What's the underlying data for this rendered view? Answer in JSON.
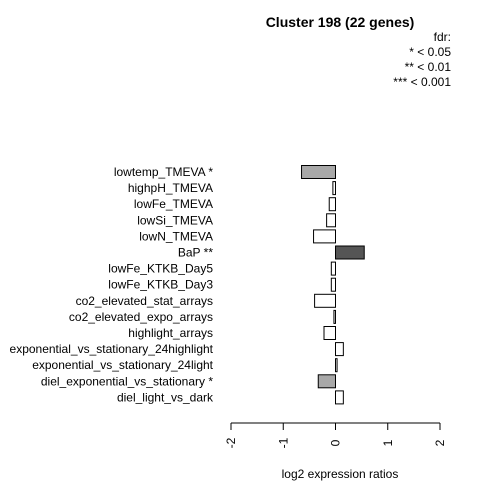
{
  "chart_data": {
    "type": "bar",
    "orientation": "horizontal",
    "title": "Cluster 198 (22 genes)",
    "xlabel": "log2 expression ratios",
    "ylabel": "",
    "xlim": [
      -2,
      2
    ],
    "xticks": [
      "-2",
      "-1",
      "0",
      "1",
      "2"
    ],
    "legend": {
      "heading": "fdr:",
      "entries": [
        "* < 0.05",
        "** < 0.01",
        "*** < 0.001"
      ],
      "placement": "top-right"
    },
    "categories": [
      "lowtemp_TMEVA *",
      "highpH_TMEVA",
      "lowFe_TMEVA",
      "lowSi_TMEVA",
      "lowN_TMEVA",
      "BaP **",
      "lowFe_KTKB_Day5",
      "lowFe_KTKB_Day3",
      "co2_elevated_stat_arrays",
      "co2_elevated_expo_arrays",
      "highlight_arrays",
      "exponential_vs_stationary_24highlight",
      "exponential_vs_stationary_24light",
      "diel_exponential_vs_stationary *",
      "diel_light_vs_dark"
    ],
    "values": [
      -0.65,
      -0.05,
      -0.12,
      -0.17,
      -0.42,
      0.55,
      -0.08,
      -0.08,
      -0.4,
      -0.03,
      -0.22,
      0.15,
      0.03,
      -0.33,
      0.15
    ],
    "significance": [
      "*",
      "",
      "",
      "",
      "",
      "**",
      "",
      "",
      "",
      "",
      "",
      "",
      "",
      "*",
      ""
    ],
    "colors": {
      "*": "#a8a8a8",
      "**": "#555555",
      "": "#ffffff",
      "stroke": "#000000"
    }
  }
}
